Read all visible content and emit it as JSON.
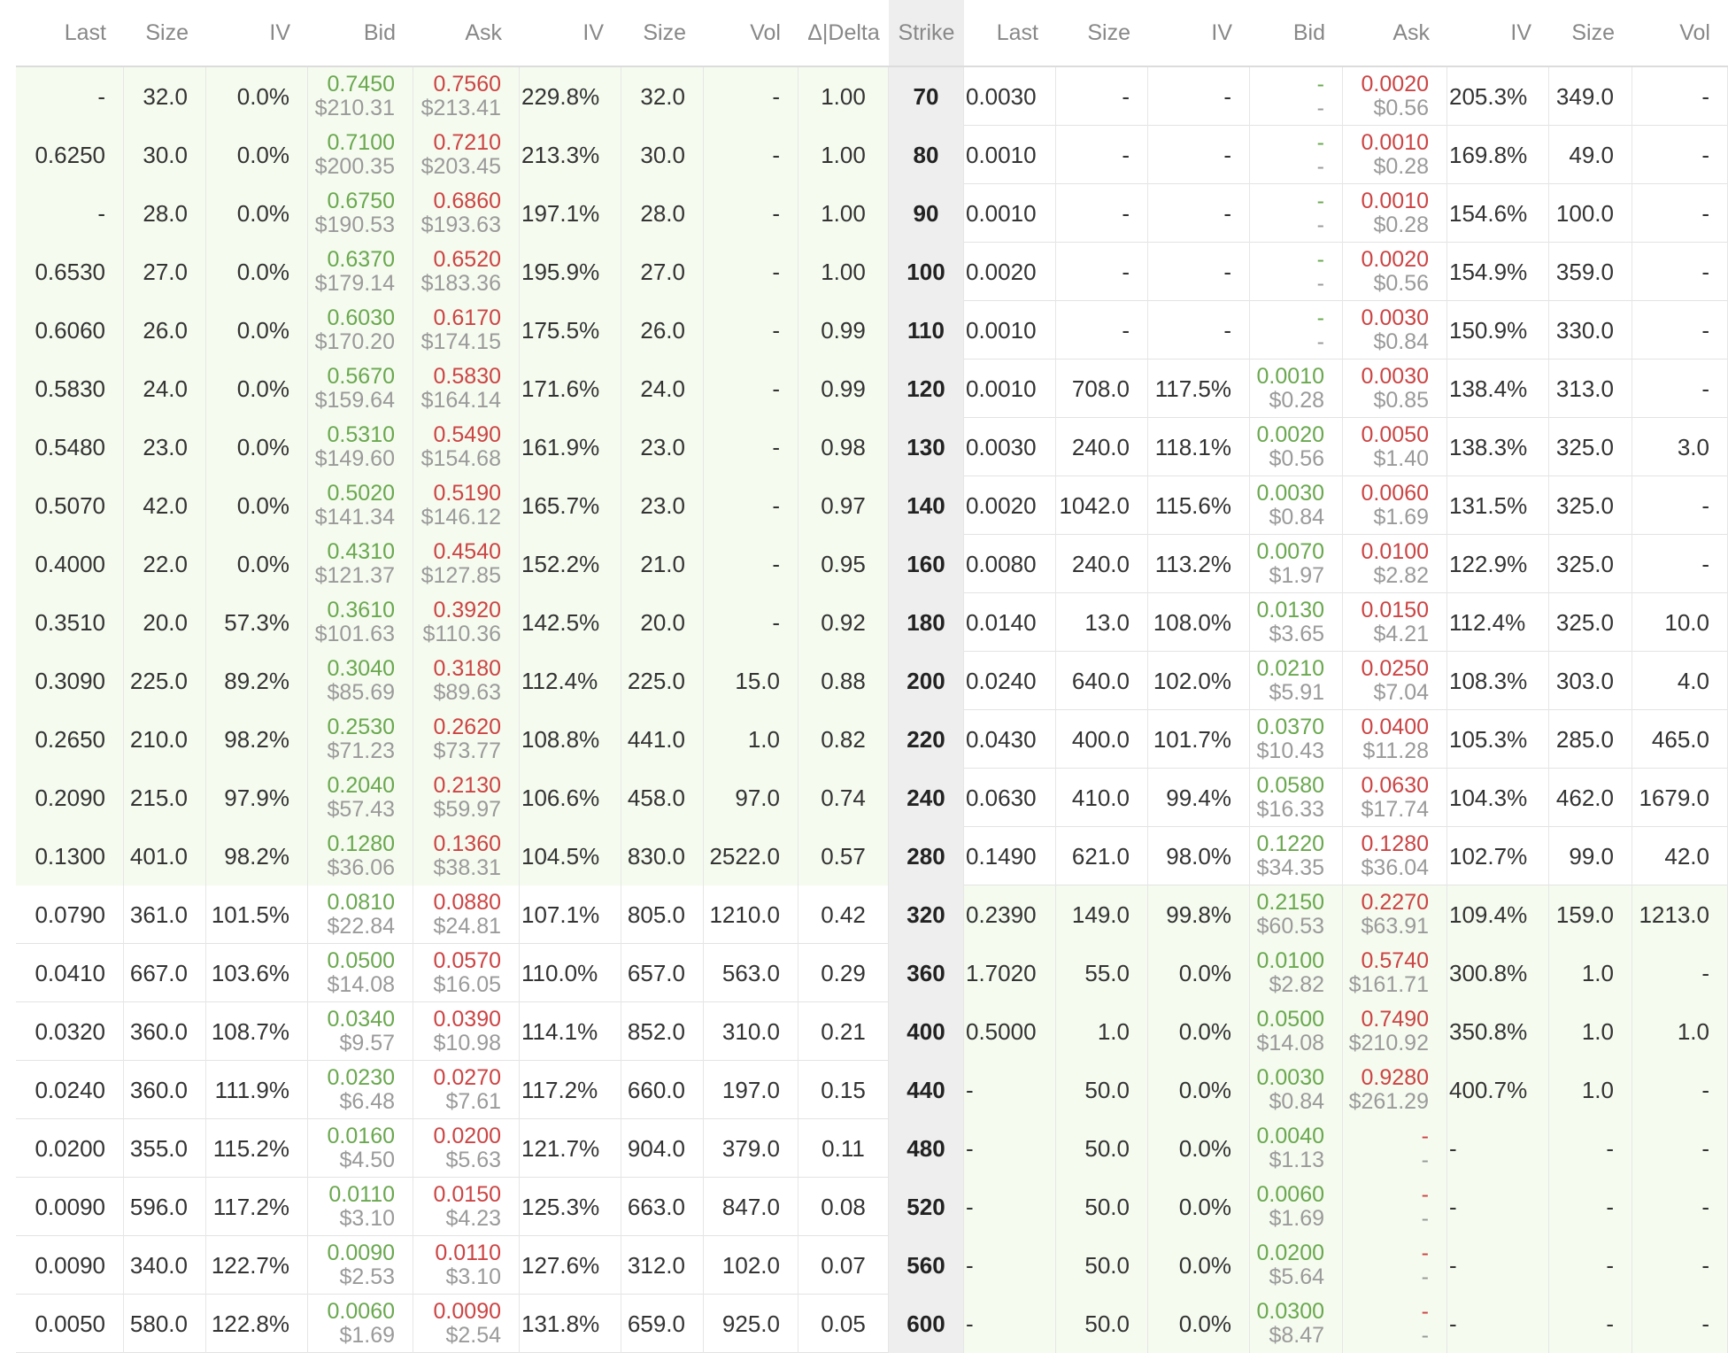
{
  "headers": [
    "Last",
    "Size",
    "IV",
    "Bid",
    "Ask",
    "IV",
    "Size",
    "Vol",
    "Δ|Delta",
    "Strike",
    "Last",
    "Size",
    "IV",
    "Bid",
    "Ask",
    "IV",
    "Size",
    "Vol"
  ],
  "rows": [
    {
      "call": {
        "last": "-",
        "size": "32.0",
        "iv": "0.0%",
        "bid": "0.7450",
        "bid_usd": "$210.31",
        "ask": "0.7560",
        "ask_usd": "$213.41",
        "iv2": "229.8%",
        "size2": "32.0",
        "vol": "-",
        "delta": "1.00"
      },
      "strike": "70",
      "put": {
        "last": "0.0030",
        "size": "-",
        "iv": "-",
        "bid": "-",
        "bid_usd": "-",
        "ask": "0.0020",
        "ask_usd": "$0.56",
        "iv2": "205.3%",
        "size2": "349.0",
        "vol": "-"
      }
    },
    {
      "call": {
        "last": "0.6250",
        "size": "30.0",
        "iv": "0.0%",
        "bid": "0.7100",
        "bid_usd": "$200.35",
        "ask": "0.7210",
        "ask_usd": "$203.45",
        "iv2": "213.3%",
        "size2": "30.0",
        "vol": "-",
        "delta": "1.00"
      },
      "strike": "80",
      "put": {
        "last": "0.0010",
        "size": "-",
        "iv": "-",
        "bid": "-",
        "bid_usd": "-",
        "ask": "0.0010",
        "ask_usd": "$0.28",
        "iv2": "169.8%",
        "size2": "49.0",
        "vol": "-"
      }
    },
    {
      "call": {
        "last": "-",
        "size": "28.0",
        "iv": "0.0%",
        "bid": "0.6750",
        "bid_usd": "$190.53",
        "ask": "0.6860",
        "ask_usd": "$193.63",
        "iv2": "197.1%",
        "size2": "28.0",
        "vol": "-",
        "delta": "1.00"
      },
      "strike": "90",
      "put": {
        "last": "0.0010",
        "size": "-",
        "iv": "-",
        "bid": "-",
        "bid_usd": "-",
        "ask": "0.0010",
        "ask_usd": "$0.28",
        "iv2": "154.6%",
        "size2": "100.0",
        "vol": "-"
      }
    },
    {
      "call": {
        "last": "0.6530",
        "size": "27.0",
        "iv": "0.0%",
        "bid": "0.6370",
        "bid_usd": "$179.14",
        "ask": "0.6520",
        "ask_usd": "$183.36",
        "iv2": "195.9%",
        "size2": "27.0",
        "vol": "-",
        "delta": "1.00"
      },
      "strike": "100",
      "put": {
        "last": "0.0020",
        "size": "-",
        "iv": "-",
        "bid": "-",
        "bid_usd": "-",
        "ask": "0.0020",
        "ask_usd": "$0.56",
        "iv2": "154.9%",
        "size2": "359.0",
        "vol": "-"
      }
    },
    {
      "call": {
        "last": "0.6060",
        "size": "26.0",
        "iv": "0.0%",
        "bid": "0.6030",
        "bid_usd": "$170.20",
        "ask": "0.6170",
        "ask_usd": "$174.15",
        "iv2": "175.5%",
        "size2": "26.0",
        "vol": "-",
        "delta": "0.99"
      },
      "strike": "110",
      "put": {
        "last": "0.0010",
        "size": "-",
        "iv": "-",
        "bid": "-",
        "bid_usd": "-",
        "ask": "0.0030",
        "ask_usd": "$0.84",
        "iv2": "150.9%",
        "size2": "330.0",
        "vol": "-"
      }
    },
    {
      "call": {
        "last": "0.5830",
        "size": "24.0",
        "iv": "0.0%",
        "bid": "0.5670",
        "bid_usd": "$159.64",
        "ask": "0.5830",
        "ask_usd": "$164.14",
        "iv2": "171.6%",
        "size2": "24.0",
        "vol": "-",
        "delta": "0.99"
      },
      "strike": "120",
      "put": {
        "last": "0.0010",
        "size": "708.0",
        "iv": "117.5%",
        "bid": "0.0010",
        "bid_usd": "$0.28",
        "ask": "0.0030",
        "ask_usd": "$0.85",
        "iv2": "138.4%",
        "size2": "313.0",
        "vol": "-"
      }
    },
    {
      "call": {
        "last": "0.5480",
        "size": "23.0",
        "iv": "0.0%",
        "bid": "0.5310",
        "bid_usd": "$149.60",
        "ask": "0.5490",
        "ask_usd": "$154.68",
        "iv2": "161.9%",
        "size2": "23.0",
        "vol": "-",
        "delta": "0.98"
      },
      "strike": "130",
      "put": {
        "last": "0.0030",
        "size": "240.0",
        "iv": "118.1%",
        "bid": "0.0020",
        "bid_usd": "$0.56",
        "ask": "0.0050",
        "ask_usd": "$1.40",
        "iv2": "138.3%",
        "size2": "325.0",
        "vol": "3.0"
      }
    },
    {
      "call": {
        "last": "0.5070",
        "size": "42.0",
        "iv": "0.0%",
        "bid": "0.5020",
        "bid_usd": "$141.34",
        "ask": "0.5190",
        "ask_usd": "$146.12",
        "iv2": "165.7%",
        "size2": "23.0",
        "vol": "-",
        "delta": "0.97"
      },
      "strike": "140",
      "put": {
        "last": "0.0020",
        "size": "1042.0",
        "iv": "115.6%",
        "bid": "0.0030",
        "bid_usd": "$0.84",
        "ask": "0.0060",
        "ask_usd": "$1.69",
        "iv2": "131.5%",
        "size2": "325.0",
        "vol": "-"
      }
    },
    {
      "call": {
        "last": "0.4000",
        "size": "22.0",
        "iv": "0.0%",
        "bid": "0.4310",
        "bid_usd": "$121.37",
        "ask": "0.4540",
        "ask_usd": "$127.85",
        "iv2": "152.2%",
        "size2": "21.0",
        "vol": "-",
        "delta": "0.95"
      },
      "strike": "160",
      "put": {
        "last": "0.0080",
        "size": "240.0",
        "iv": "113.2%",
        "bid": "0.0070",
        "bid_usd": "$1.97",
        "ask": "0.0100",
        "ask_usd": "$2.82",
        "iv2": "122.9%",
        "size2": "325.0",
        "vol": "-"
      }
    },
    {
      "call": {
        "last": "0.3510",
        "size": "20.0",
        "iv": "57.3%",
        "bid": "0.3610",
        "bid_usd": "$101.63",
        "ask": "0.3920",
        "ask_usd": "$110.36",
        "iv2": "142.5%",
        "size2": "20.0",
        "vol": "-",
        "delta": "0.92"
      },
      "strike": "180",
      "put": {
        "last": "0.0140",
        "size": "13.0",
        "iv": "108.0%",
        "bid": "0.0130",
        "bid_usd": "$3.65",
        "ask": "0.0150",
        "ask_usd": "$4.21",
        "iv2": "112.4%",
        "size2": "325.0",
        "vol": "10.0"
      }
    },
    {
      "call": {
        "last": "0.3090",
        "size": "225.0",
        "iv": "89.2%",
        "bid": "0.3040",
        "bid_usd": "$85.69",
        "ask": "0.3180",
        "ask_usd": "$89.63",
        "iv2": "112.4%",
        "size2": "225.0",
        "vol": "15.0",
        "delta": "0.88"
      },
      "strike": "200",
      "put": {
        "last": "0.0240",
        "size": "640.0",
        "iv": "102.0%",
        "bid": "0.0210",
        "bid_usd": "$5.91",
        "ask": "0.0250",
        "ask_usd": "$7.04",
        "iv2": "108.3%",
        "size2": "303.0",
        "vol": "4.0"
      }
    },
    {
      "call": {
        "last": "0.2650",
        "size": "210.0",
        "iv": "98.2%",
        "bid": "0.2530",
        "bid_usd": "$71.23",
        "ask": "0.2620",
        "ask_usd": "$73.77",
        "iv2": "108.8%",
        "size2": "441.0",
        "vol": "1.0",
        "delta": "0.82"
      },
      "strike": "220",
      "put": {
        "last": "0.0430",
        "size": "400.0",
        "iv": "101.7%",
        "bid": "0.0370",
        "bid_usd": "$10.43",
        "ask": "0.0400",
        "ask_usd": "$11.28",
        "iv2": "105.3%",
        "size2": "285.0",
        "vol": "465.0"
      }
    },
    {
      "call": {
        "last": "0.2090",
        "size": "215.0",
        "iv": "97.9%",
        "bid": "0.2040",
        "bid_usd": "$57.43",
        "ask": "0.2130",
        "ask_usd": "$59.97",
        "iv2": "106.6%",
        "size2": "458.0",
        "vol": "97.0",
        "delta": "0.74"
      },
      "strike": "240",
      "put": {
        "last": "0.0630",
        "size": "410.0",
        "iv": "99.4%",
        "bid": "0.0580",
        "bid_usd": "$16.33",
        "ask": "0.0630",
        "ask_usd": "$17.74",
        "iv2": "104.3%",
        "size2": "462.0",
        "vol": "1679.0"
      }
    },
    {
      "call": {
        "last": "0.1300",
        "size": "401.0",
        "iv": "98.2%",
        "bid": "0.1280",
        "bid_usd": "$36.06",
        "ask": "0.1360",
        "ask_usd": "$38.31",
        "iv2": "104.5%",
        "size2": "830.0",
        "vol": "2522.0",
        "delta": "0.57"
      },
      "strike": "280",
      "put": {
        "last": "0.1490",
        "size": "621.0",
        "iv": "98.0%",
        "bid": "0.1220",
        "bid_usd": "$34.35",
        "ask": "0.1280",
        "ask_usd": "$36.04",
        "iv2": "102.7%",
        "size2": "99.0",
        "vol": "42.0"
      }
    },
    {
      "call": {
        "last": "0.0790",
        "size": "361.0",
        "iv": "101.5%",
        "bid": "0.0810",
        "bid_usd": "$22.84",
        "ask": "0.0880",
        "ask_usd": "$24.81",
        "iv2": "107.1%",
        "size2": "805.0",
        "vol": "1210.0",
        "delta": "0.42"
      },
      "strike": "320",
      "put": {
        "last": "0.2390",
        "size": "149.0",
        "iv": "99.8%",
        "bid": "0.2150",
        "bid_usd": "$60.53",
        "ask": "0.2270",
        "ask_usd": "$63.91",
        "iv2": "109.4%",
        "size2": "159.0",
        "vol": "1213.0"
      }
    },
    {
      "call": {
        "last": "0.0410",
        "size": "667.0",
        "iv": "103.6%",
        "bid": "0.0500",
        "bid_usd": "$14.08",
        "ask": "0.0570",
        "ask_usd": "$16.05",
        "iv2": "110.0%",
        "size2": "657.0",
        "vol": "563.0",
        "delta": "0.29"
      },
      "strike": "360",
      "put": {
        "last": "1.7020",
        "size": "55.0",
        "iv": "0.0%",
        "bid": "0.0100",
        "bid_usd": "$2.82",
        "ask": "0.5740",
        "ask_usd": "$161.71",
        "iv2": "300.8%",
        "size2": "1.0",
        "vol": "-"
      }
    },
    {
      "call": {
        "last": "0.0320",
        "size": "360.0",
        "iv": "108.7%",
        "bid": "0.0340",
        "bid_usd": "$9.57",
        "ask": "0.0390",
        "ask_usd": "$10.98",
        "iv2": "114.1%",
        "size2": "852.0",
        "vol": "310.0",
        "delta": "0.21"
      },
      "strike": "400",
      "put": {
        "last": "0.5000",
        "size": "1.0",
        "iv": "0.0%",
        "bid": "0.0500",
        "bid_usd": "$14.08",
        "ask": "0.7490",
        "ask_usd": "$210.92",
        "iv2": "350.8%",
        "size2": "1.0",
        "vol": "1.0"
      }
    },
    {
      "call": {
        "last": "0.0240",
        "size": "360.0",
        "iv": "111.9%",
        "bid": "0.0230",
        "bid_usd": "$6.48",
        "ask": "0.0270",
        "ask_usd": "$7.61",
        "iv2": "117.2%",
        "size2": "660.0",
        "vol": "197.0",
        "delta": "0.15"
      },
      "strike": "440",
      "put": {
        "last": "-",
        "size": "50.0",
        "iv": "0.0%",
        "bid": "0.0030",
        "bid_usd": "$0.84",
        "ask": "0.9280",
        "ask_usd": "$261.29",
        "iv2": "400.7%",
        "size2": "1.0",
        "vol": "-"
      }
    },
    {
      "call": {
        "last": "0.0200",
        "size": "355.0",
        "iv": "115.2%",
        "bid": "0.0160",
        "bid_usd": "$4.50",
        "ask": "0.0200",
        "ask_usd": "$5.63",
        "iv2": "121.7%",
        "size2": "904.0",
        "vol": "379.0",
        "delta": "0.11"
      },
      "strike": "480",
      "put": {
        "last": "-",
        "size": "50.0",
        "iv": "0.0%",
        "bid": "0.0040",
        "bid_usd": "$1.13",
        "ask": "-",
        "ask_usd": "-",
        "iv2": "-",
        "size2": "-",
        "vol": "-"
      }
    },
    {
      "call": {
        "last": "0.0090",
        "size": "596.0",
        "iv": "117.2%",
        "bid": "0.0110",
        "bid_usd": "$3.10",
        "ask": "0.0150",
        "ask_usd": "$4.23",
        "iv2": "125.3%",
        "size2": "663.0",
        "vol": "847.0",
        "delta": "0.08"
      },
      "strike": "520",
      "put": {
        "last": "-",
        "size": "50.0",
        "iv": "0.0%",
        "bid": "0.0060",
        "bid_usd": "$1.69",
        "ask": "-",
        "ask_usd": "-",
        "iv2": "-",
        "size2": "-",
        "vol": "-"
      }
    },
    {
      "call": {
        "last": "0.0090",
        "size": "340.0",
        "iv": "122.7%",
        "bid": "0.0090",
        "bid_usd": "$2.53",
        "ask": "0.0110",
        "ask_usd": "$3.10",
        "iv2": "127.6%",
        "size2": "312.0",
        "vol": "102.0",
        "delta": "0.07"
      },
      "strike": "560",
      "put": {
        "last": "-",
        "size": "50.0",
        "iv": "0.0%",
        "bid": "0.0200",
        "bid_usd": "$5.64",
        "ask": "-",
        "ask_usd": "-",
        "iv2": "-",
        "size2": "-",
        "vol": "-"
      }
    },
    {
      "call": {
        "last": "0.0050",
        "size": "580.0",
        "iv": "122.8%",
        "bid": "0.0060",
        "bid_usd": "$1.69",
        "ask": "0.0090",
        "ask_usd": "$2.54",
        "iv2": "131.8%",
        "size2": "659.0",
        "vol": "925.0",
        "delta": "0.05"
      },
      "strike": "600",
      "put": {
        "last": "-",
        "size": "50.0",
        "iv": "0.0%",
        "bid": "0.0300",
        "bid_usd": "$8.47",
        "ask": "-",
        "ask_usd": "-",
        "iv2": "-",
        "size2": "-",
        "vol": "-"
      }
    }
  ],
  "colors": {
    "bid": "#6aa84f",
    "ask": "#cc4444",
    "itm": "#f5fbef",
    "strike_bg": "#eeeeee"
  }
}
